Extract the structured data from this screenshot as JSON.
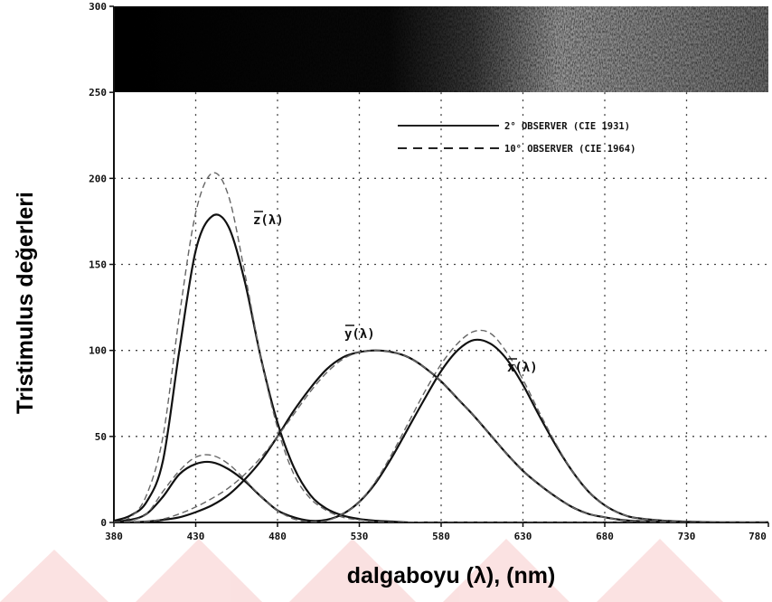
{
  "chart_data": {
    "type": "line",
    "xlabel": "dalgaboyu (λ), (nm)",
    "ylabel": "Tristimulus değerleri",
    "xlim": [
      380,
      780
    ],
    "ylim": [
      0,
      300
    ],
    "x_ticks": [
      380,
      430,
      480,
      530,
      580,
      630,
      680,
      730,
      780
    ],
    "y_ticks": [
      0,
      50,
      100,
      150,
      200,
      250,
      300
    ],
    "x_tick_labels": [
      "380",
      "430",
      "480",
      "530",
      "580",
      "630",
      "680",
      "730",
      "780"
    ],
    "y_tick_labels": [
      "0",
      "50",
      "100",
      "150",
      "200",
      "250",
      "300"
    ],
    "grid": true,
    "legend_position": "top-right",
    "legend": [
      {
        "label": "2° OBSERVER (CIE 1931)",
        "style": "solid"
      },
      {
        "label": "10° OBSERVER (CIE 1964)",
        "style": "dashed"
      }
    ],
    "annotations": [
      {
        "text": "z(λ)",
        "series": "z"
      },
      {
        "text": "y(λ)",
        "series": "y"
      },
      {
        "text": "x(λ)",
        "series": "x"
      }
    ],
    "x": [
      380,
      390,
      400,
      410,
      420,
      430,
      440,
      450,
      460,
      470,
      480,
      490,
      500,
      510,
      520,
      530,
      540,
      550,
      560,
      570,
      580,
      590,
      600,
      610,
      620,
      630,
      640,
      650,
      660,
      670,
      680,
      690,
      700,
      720,
      740,
      760,
      780
    ],
    "series": [
      {
        "observer": "2° OBSERVER (CIE 1931)",
        "curve": "z",
        "style": "solid",
        "values": [
          1,
          4,
          12,
          36,
          100,
          158,
          178,
          172,
          140,
          95,
          58,
          32,
          16,
          8,
          4,
          2,
          1,
          0.5,
          0,
          0,
          0,
          0,
          0,
          0,
          0,
          0,
          0,
          0,
          0,
          0,
          0,
          0,
          0,
          0,
          0,
          0,
          0
        ]
      },
      {
        "observer": "10° OBSERVER (CIE 1964)",
        "curve": "z",
        "style": "dashed",
        "values": [
          0.5,
          3,
          16,
          50,
          120,
          180,
          203,
          190,
          145,
          95,
          55,
          28,
          14,
          7,
          3,
          1.5,
          0.5,
          0,
          0,
          0,
          0,
          0,
          0,
          0,
          0,
          0,
          0,
          0,
          0,
          0,
          0,
          0,
          0,
          0,
          0,
          0,
          0
        ]
      },
      {
        "observer": "2° OBSERVER (CIE 1931)",
        "curve": "x",
        "style": "solid",
        "values": [
          0.5,
          1.5,
          5,
          15,
          28,
          34,
          35,
          31,
          24,
          15,
          7,
          3,
          1,
          1.5,
          5,
          12,
          23,
          38,
          55,
          72,
          88,
          100,
          106,
          104,
          95,
          80,
          62,
          45,
          30,
          18,
          10,
          5,
          2.5,
          0.8,
          0.2,
          0,
          0
        ]
      },
      {
        "observer": "10° OBSERVER (CIE 1964)",
        "curve": "x",
        "style": "dashed",
        "values": [
          0.3,
          1,
          5,
          18,
          30,
          38,
          39,
          34,
          25,
          15,
          7,
          2,
          0.5,
          1,
          5,
          12,
          24,
          40,
          58,
          76,
          92,
          104,
          111,
          110,
          99,
          83,
          64,
          46,
          30,
          18,
          10,
          5,
          2.5,
          0.8,
          0.2,
          0,
          0
        ]
      },
      {
        "observer": "2° OBSERVER (CIE 1931)",
        "curve": "y",
        "style": "solid",
        "values": [
          0,
          0.1,
          0.5,
          1.5,
          3,
          6,
          10,
          16,
          25,
          36,
          50,
          65,
          78,
          89,
          96,
          99,
          100,
          99,
          96,
          90,
          82,
          72,
          62,
          51,
          40,
          30,
          22,
          15,
          9,
          5,
          3,
          1.5,
          0.8,
          0.2,
          0,
          0,
          0
        ]
      },
      {
        "observer": "10° OBSERVER (CIE 1964)",
        "curve": "y",
        "style": "dashed",
        "values": [
          0,
          0.1,
          0.6,
          2,
          5,
          9,
          14,
          20,
          28,
          38,
          50,
          63,
          76,
          87,
          95,
          99,
          100,
          99,
          96,
          90,
          82,
          72,
          62,
          51,
          40,
          30,
          22,
          15,
          9,
          5,
          3,
          1.5,
          0.8,
          0.2,
          0,
          0,
          0
        ]
      }
    ]
  }
}
